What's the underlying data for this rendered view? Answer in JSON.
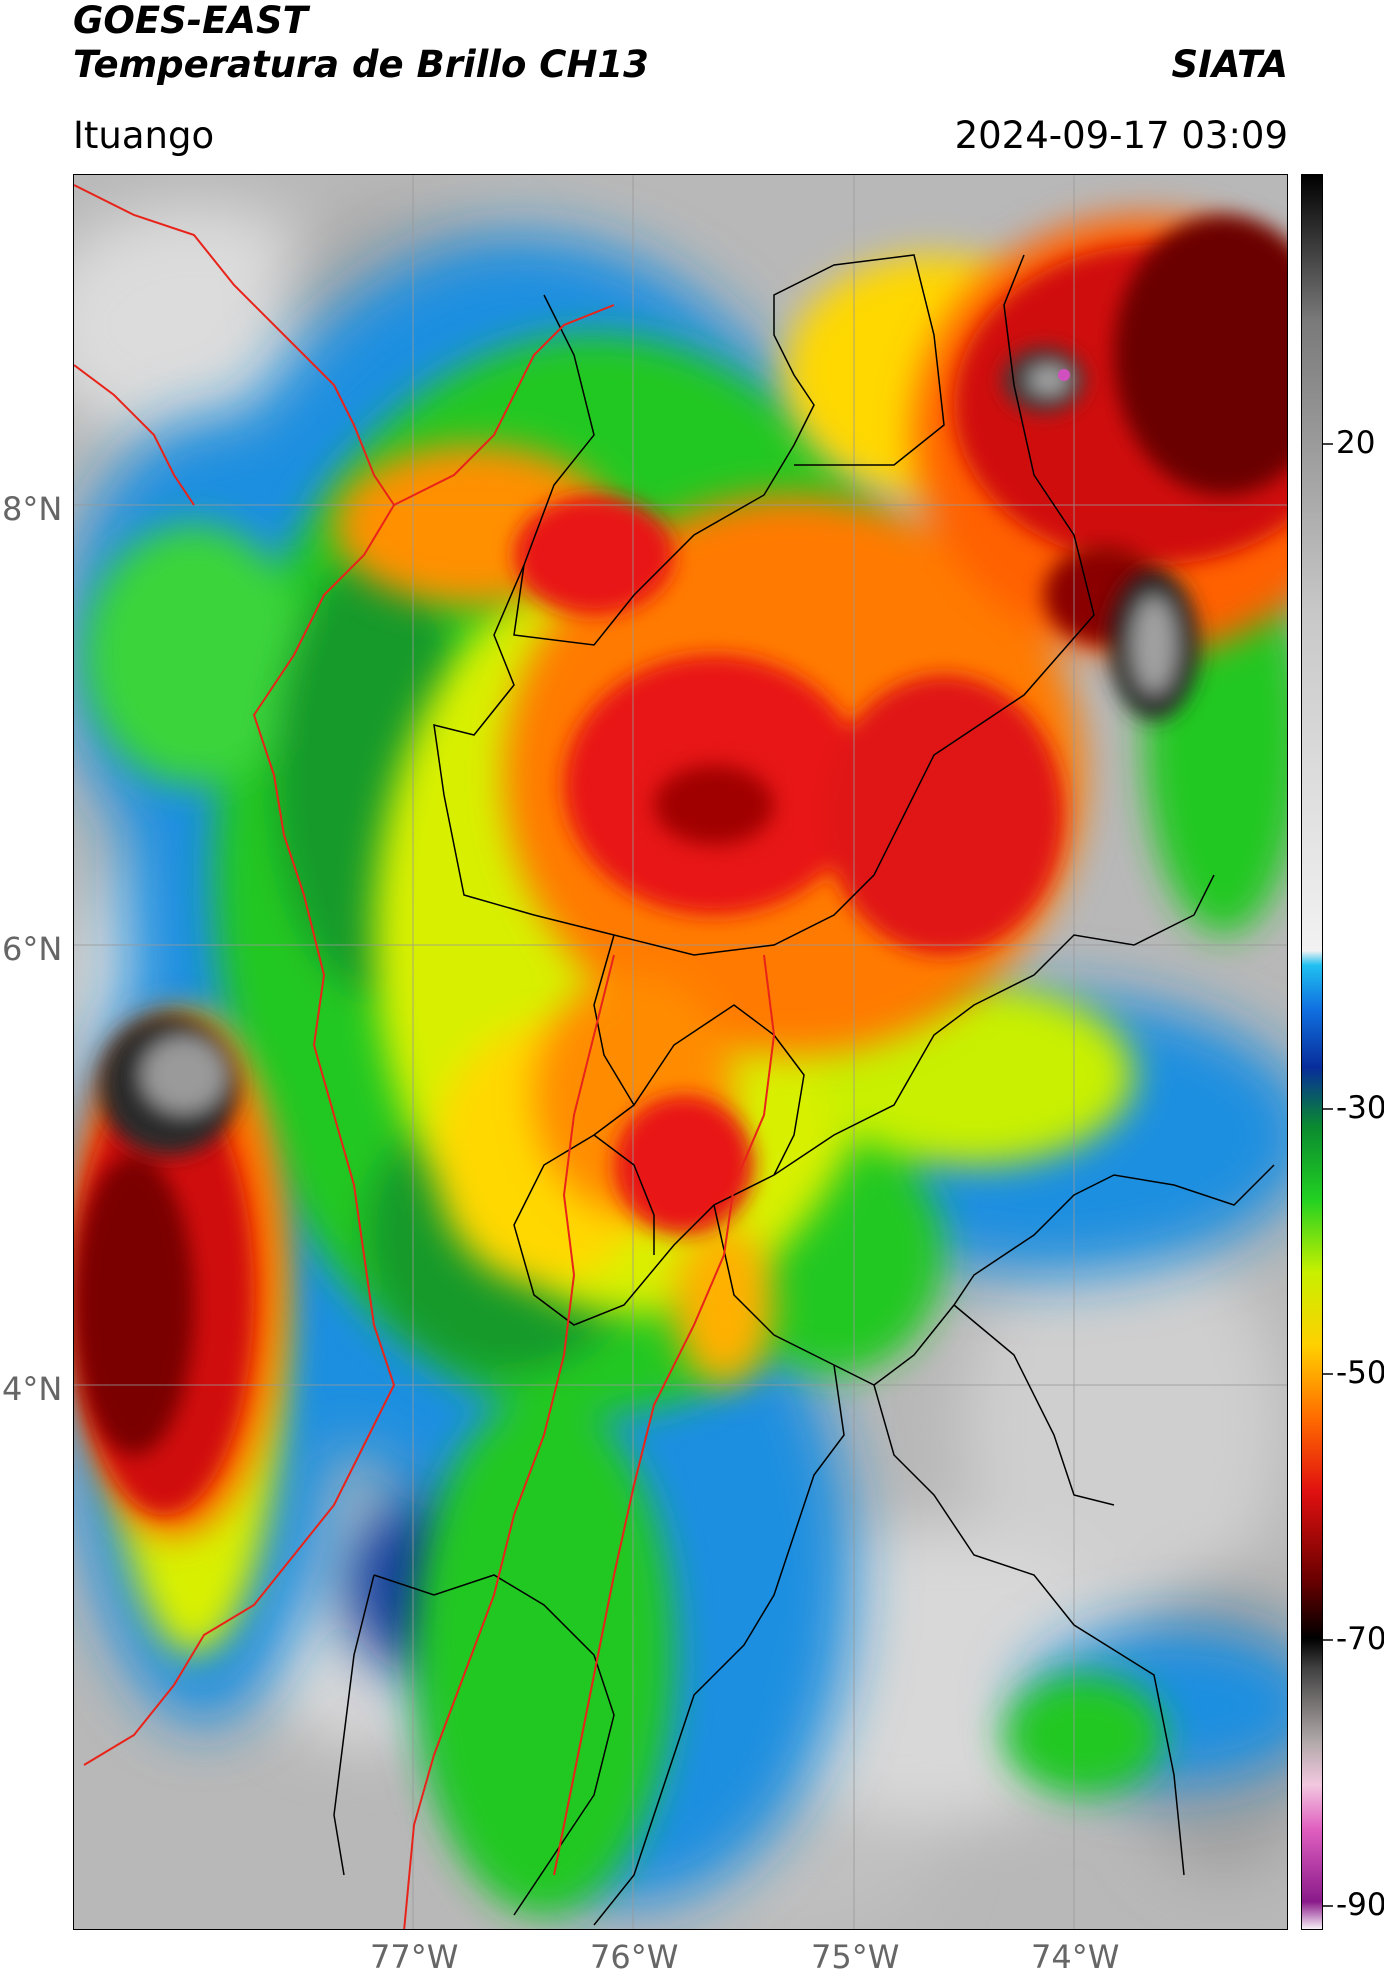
{
  "header": {
    "satellite": "GOES-EAST",
    "product": "Temperatura de Brillo CH13",
    "organization": "SIATA",
    "location": "Ituango",
    "datetime": "2024-09-17 03:09"
  },
  "map": {
    "lat_labels": [
      "8°N",
      "6°N",
      "4°N"
    ],
    "lon_labels": [
      "77°W",
      "76°W",
      "75°W",
      "74°W"
    ],
    "colors": {
      "grid": "#999999",
      "border_country": "#e8231a",
      "border_admin": "#000000"
    }
  },
  "colorbar": {
    "ticks": [
      "20",
      "-30",
      "-50",
      "-70",
      "-90"
    ],
    "scale": [
      {
        "value": -90,
        "color": "#ffffff"
      },
      {
        "value": -88,
        "color": "#8a1a8a"
      },
      {
        "value": -83,
        "color": "#e060c0"
      },
      {
        "value": -80,
        "color": "#f2c8e0"
      },
      {
        "value": -77,
        "color": "#b0a8a8"
      },
      {
        "value": -72,
        "color": "#404040"
      },
      {
        "value": -70,
        "color": "#000000"
      },
      {
        "value": -66,
        "color": "#6a0000"
      },
      {
        "value": -60,
        "color": "#e01010"
      },
      {
        "value": -55,
        "color": "#ff6a00"
      },
      {
        "value": -50,
        "color": "#ffd000"
      },
      {
        "value": -45,
        "color": "#c8f000"
      },
      {
        "value": -40,
        "color": "#22d022"
      },
      {
        "value": -35,
        "color": "#0a8a30"
      },
      {
        "value": -31,
        "color": "#082d9a"
      },
      {
        "value": -27,
        "color": "#1070e0"
      },
      {
        "value": -24,
        "color": "#20c0f0"
      },
      {
        "value": -23,
        "color": "#f2f2f2"
      },
      {
        "value": 0,
        "color": "#c8c8c8"
      },
      {
        "value": 20,
        "color": "#7a7a7a"
      },
      {
        "value": 30,
        "color": "#000000"
      }
    ]
  }
}
